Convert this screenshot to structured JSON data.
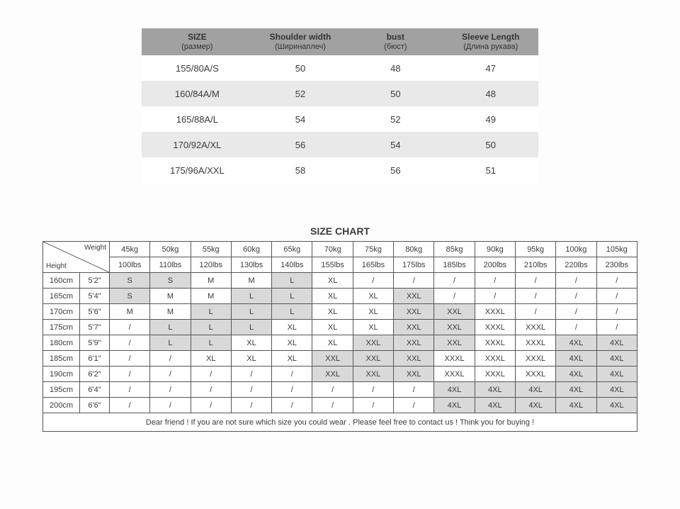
{
  "meas_table": {
    "headers": [
      {
        "main": "SIZE",
        "sub": "(размер)"
      },
      {
        "main": "Shoulder width",
        "sub": "(Ширинаплеч)"
      },
      {
        "main": "bust",
        "sub": "(бюст)"
      },
      {
        "main": "Sleeve Length",
        "sub": "(Длина рукава)"
      }
    ],
    "rows": [
      [
        "155/80A/S",
        "50",
        "48",
        "47"
      ],
      [
        "160/84A/M",
        "52",
        "50",
        "48"
      ],
      [
        "165/88A/L",
        "54",
        "52",
        "49"
      ],
      [
        "170/92A/XL",
        "56",
        "54",
        "50"
      ],
      [
        "175/96A/XXL",
        "58",
        "56",
        "51"
      ]
    ],
    "header_bg": "#a1a1a1",
    "alt_row_bg": "#e9e9e9"
  },
  "size_chart": {
    "title": "SIZE CHART",
    "corner": {
      "weight_label": "Weight",
      "height_label": "Height"
    },
    "weights_kg": [
      "45kg",
      "50kg",
      "55kg",
      "60kg",
      "65kg",
      "70kg",
      "75kg",
      "80kg",
      "85kg",
      "90kg",
      "95kg",
      "100kg",
      "105kg"
    ],
    "weights_lbs": [
      "100lbs",
      "110lbs",
      "120lbs",
      "130lbs",
      "140lbs",
      "155lbs",
      "165lbs",
      "175lbs",
      "185lbs",
      "200lbs",
      "210lbs",
      "220lbs",
      "230lbs"
    ],
    "heights": [
      {
        "cm": "160cm",
        "ft": "5'2\""
      },
      {
        "cm": "165cm",
        "ft": "5'4\""
      },
      {
        "cm": "170cm",
        "ft": "5'6\""
      },
      {
        "cm": "175cm",
        "ft": "5'7\""
      },
      {
        "cm": "180cm",
        "ft": "5'9\""
      },
      {
        "cm": "185cm",
        "ft": "6'1\""
      },
      {
        "cm": "190cm",
        "ft": "6'2\""
      },
      {
        "cm": "195cm",
        "ft": "6'4\""
      },
      {
        "cm": "200cm",
        "ft": "6'6\""
      }
    ],
    "cells": [
      [
        "S",
        "S",
        "M",
        "M",
        "L",
        "XL",
        "/",
        "/",
        "/",
        "/",
        "/",
        "/",
        "/"
      ],
      [
        "S",
        "M",
        "M",
        "L",
        "L",
        "XL",
        "XL",
        "XXL",
        "/",
        "/",
        "/",
        "/",
        "/"
      ],
      [
        "M",
        "M",
        "L",
        "L",
        "L",
        "XL",
        "XL",
        "XXL",
        "XXL",
        "XXXL",
        "/",
        "/",
        "/"
      ],
      [
        "/",
        "L",
        "L",
        "L",
        "XL",
        "XL",
        "XL",
        "XXL",
        "XXL",
        "XXXL",
        "XXXL",
        "/",
        "/"
      ],
      [
        "/",
        "L",
        "L",
        "XL",
        "XL",
        "XL",
        "XXL",
        "XXL",
        "XXL",
        "XXXL",
        "XXXL",
        "4XL",
        "4XL"
      ],
      [
        "/",
        "/",
        "XL",
        "XL",
        "XL",
        "XXL",
        "XXL",
        "XXL",
        "XXXL",
        "XXXL",
        "XXXL",
        "4XL",
        "4XL"
      ],
      [
        "/",
        "/",
        "/",
        "/",
        "/",
        "XXL",
        "XXL",
        "XXL",
        "XXXL",
        "XXXL",
        "XXXL",
        "4XL",
        "4XL"
      ],
      [
        "/",
        "/",
        "/",
        "/",
        "/",
        "/",
        "/",
        "/",
        "4XL",
        "4XL",
        "4XL",
        "4XL",
        "4XL"
      ],
      [
        "/",
        "/",
        "/",
        "/",
        "/",
        "/",
        "/",
        "/",
        "4XL",
        "4XL",
        "4XL",
        "4XL",
        "4XL"
      ]
    ],
    "shaded": [
      [
        1,
        1,
        0,
        0,
        1,
        0,
        0,
        0,
        0,
        0,
        0,
        0,
        0
      ],
      [
        1,
        0,
        0,
        1,
        1,
        0,
        0,
        1,
        0,
        0,
        0,
        0,
        0
      ],
      [
        0,
        0,
        1,
        1,
        1,
        0,
        0,
        1,
        1,
        0,
        0,
        0,
        0
      ],
      [
        0,
        1,
        1,
        1,
        0,
        0,
        0,
        1,
        1,
        0,
        0,
        0,
        0
      ],
      [
        0,
        1,
        1,
        0,
        0,
        0,
        1,
        1,
        1,
        0,
        0,
        1,
        1
      ],
      [
        0,
        0,
        0,
        0,
        0,
        1,
        1,
        1,
        0,
        0,
        0,
        1,
        1
      ],
      [
        0,
        0,
        0,
        0,
        0,
        1,
        1,
        1,
        0,
        0,
        0,
        1,
        1
      ],
      [
        0,
        0,
        0,
        0,
        0,
        0,
        0,
        0,
        1,
        1,
        1,
        1,
        1
      ],
      [
        0,
        0,
        0,
        0,
        0,
        0,
        0,
        0,
        1,
        1,
        1,
        1,
        1
      ]
    ],
    "shaded_bg": "#d9d9d9",
    "border_color": "#555555",
    "footer": "Dear friend ! If you are not sure which size you could wear . Please feel free to contact us ! Think you for buying !"
  }
}
